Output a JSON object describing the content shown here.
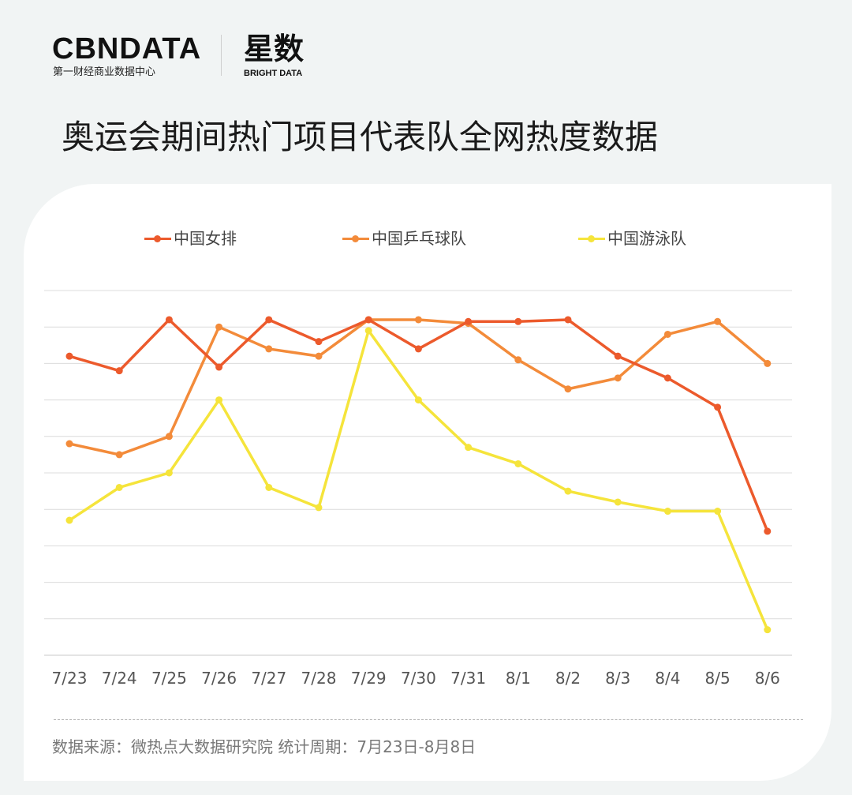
{
  "logo": {
    "brand": "CBNDATA",
    "brand_sub": "第一财经商业数据中心",
    "brand_cn": "星数",
    "brand_en": "BRIGHT DATA"
  },
  "title": "奥运会期间热门项目代表队全网热度数据",
  "source_note": "数据来源：微热点大数据研究院    统计周期：7月23日-8月8日",
  "chart_data": {
    "type": "line",
    "title": "",
    "xlabel": "",
    "ylabel": "",
    "categories": [
      "7/23",
      "7/24",
      "7/25",
      "7/26",
      "7/27",
      "7/28",
      "7/29",
      "7/30",
      "7/31",
      "8/1",
      "8/2",
      "8/3",
      "8/4",
      "8/5",
      "8/6"
    ],
    "ylim": [
      0,
      10
    ],
    "grid": true,
    "y_tick_labels_shown": false,
    "legend_position": "top",
    "series": [
      {
        "name": "中国女排",
        "color": "#ec5a2c",
        "values": [
          8.2,
          7.8,
          9.2,
          7.9,
          9.2,
          8.6,
          9.2,
          8.4,
          9.15,
          9.15,
          9.2,
          8.2,
          7.6,
          6.8,
          3.4
        ]
      },
      {
        "name": "中国乒乓球队",
        "color": "#f38b3a",
        "values": [
          5.8,
          5.5,
          6.0,
          9.0,
          8.4,
          8.2,
          9.2,
          9.2,
          9.1,
          8.1,
          7.3,
          7.6,
          8.8,
          9.15,
          8.0
        ]
      },
      {
        "name": "中国游泳队",
        "color": "#f5e43b",
        "values": [
          3.7,
          4.6,
          5.0,
          7.0,
          4.6,
          4.05,
          8.9,
          7.0,
          5.7,
          5.25,
          4.5,
          4.2,
          3.95,
          3.95,
          0.7
        ]
      }
    ]
  }
}
